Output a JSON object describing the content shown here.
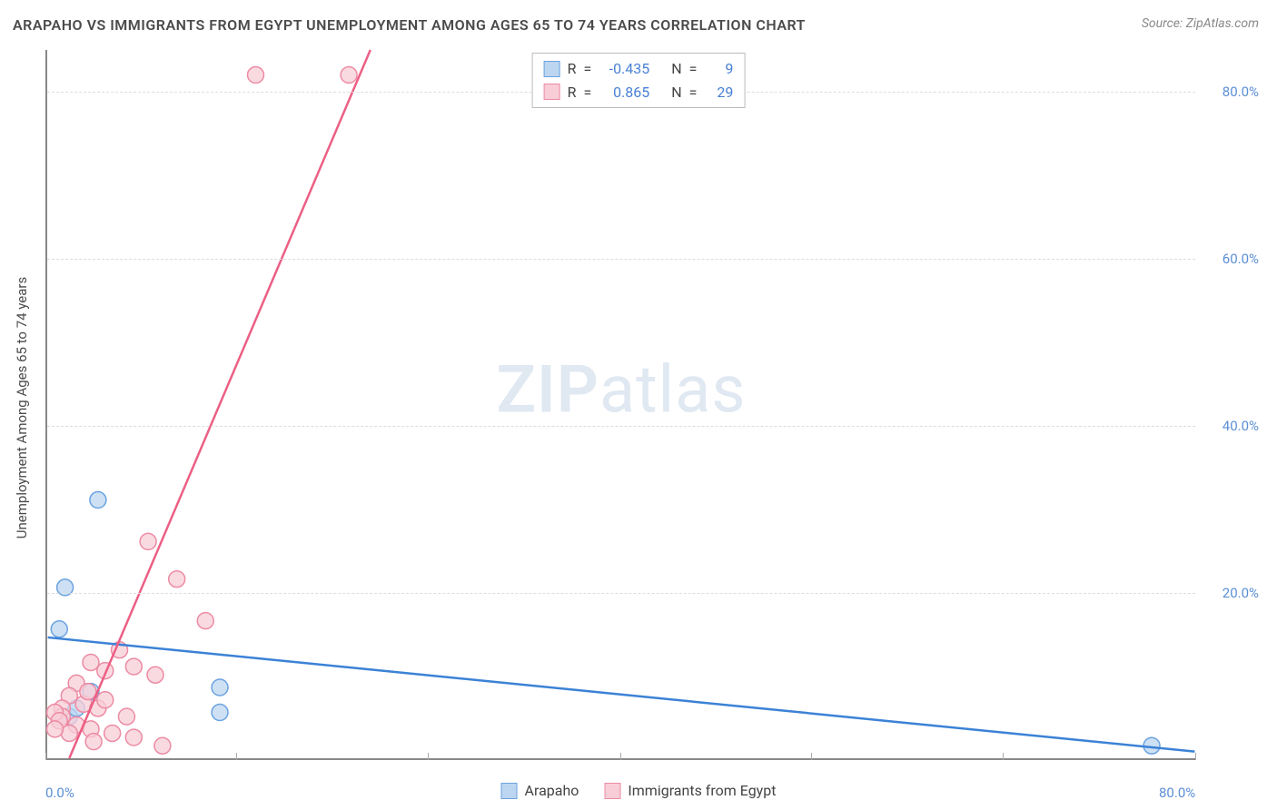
{
  "title": "ARAPAHO VS IMMIGRANTS FROM EGYPT UNEMPLOYMENT AMONG AGES 65 TO 74 YEARS CORRELATION CHART",
  "source": "Source: ZipAtlas.com",
  "y_axis_label": "Unemployment Among Ages 65 to 74 years",
  "watermark_zip": "ZIP",
  "watermark_atlas": "atlas",
  "chart": {
    "type": "scatter",
    "xlim": [
      0,
      80
    ],
    "ylim": [
      0,
      85
    ],
    "x_ticks": [
      0,
      13.3,
      26.6,
      40,
      53.3,
      66.6,
      80
    ],
    "x_tick_labels": {
      "0": "0.0%",
      "80": "80.0%"
    },
    "y_ticks": [
      20,
      40,
      60,
      80
    ],
    "y_tick_labels": [
      "20.0%",
      "40.0%",
      "60.0%",
      "80.0%"
    ],
    "grid_color": "#dddddd",
    "axis_color": "#888888",
    "background_color": "#ffffff",
    "series": [
      {
        "name": "Arapaho",
        "marker_fill": "#bcd5f0",
        "marker_stroke": "#6ba3e0",
        "marker_radius": 9,
        "line_color": "#3b82d6",
        "line_width": 2.5,
        "R": "-0.435",
        "N": "9",
        "points": [
          [
            0.8,
            15.5
          ],
          [
            1.2,
            20.5
          ],
          [
            3.5,
            31.0
          ],
          [
            3.0,
            8.0
          ],
          [
            12.0,
            8.5
          ],
          [
            12.0,
            5.5
          ],
          [
            1.5,
            5.0
          ],
          [
            2.0,
            6.0
          ],
          [
            77.0,
            1.5
          ]
        ],
        "trend": {
          "x1": 0,
          "y1": 14.5,
          "x2": 80,
          "y2": 0.8
        }
      },
      {
        "name": "Immigrants from Egypt",
        "marker_fill": "#f8cdd7",
        "marker_stroke": "#ec8ba3",
        "marker_radius": 9,
        "line_color": "#ec5f84",
        "line_width": 2.5,
        "R": "0.865",
        "N": "29",
        "points": [
          [
            14.5,
            82.0
          ],
          [
            21.0,
            82.0
          ],
          [
            7.0,
            26.0
          ],
          [
            9.0,
            21.5
          ],
          [
            11.0,
            16.5
          ],
          [
            6.0,
            11.0
          ],
          [
            5.0,
            13.0
          ],
          [
            4.0,
            10.5
          ],
          [
            3.0,
            11.5
          ],
          [
            7.5,
            10.0
          ],
          [
            2.0,
            9.0
          ],
          [
            1.5,
            7.5
          ],
          [
            1.0,
            6.0
          ],
          [
            2.5,
            6.5
          ],
          [
            3.5,
            6.0
          ],
          [
            1.0,
            5.0
          ],
          [
            0.5,
            5.5
          ],
          [
            0.8,
            4.5
          ],
          [
            2.0,
            4.0
          ],
          [
            3.0,
            3.5
          ],
          [
            4.5,
            3.0
          ],
          [
            6.0,
            2.5
          ],
          [
            8.0,
            1.5
          ],
          [
            1.5,
            3.0
          ],
          [
            0.5,
            3.5
          ],
          [
            2.8,
            8.0
          ],
          [
            4.0,
            7.0
          ],
          [
            5.5,
            5.0
          ],
          [
            3.2,
            2.0
          ]
        ],
        "trend": {
          "x1": 1.5,
          "y1": 0,
          "x2": 22.5,
          "y2": 85
        }
      }
    ]
  },
  "stats_labels": {
    "R": "R",
    "eq": "=",
    "N": "N"
  },
  "legend": {
    "items": [
      {
        "label": "Arapaho",
        "fill": "#bcd5f0",
        "stroke": "#6ba3e0"
      },
      {
        "label": "Immigrants from Egypt",
        "fill": "#f8cdd7",
        "stroke": "#ec8ba3"
      }
    ]
  }
}
